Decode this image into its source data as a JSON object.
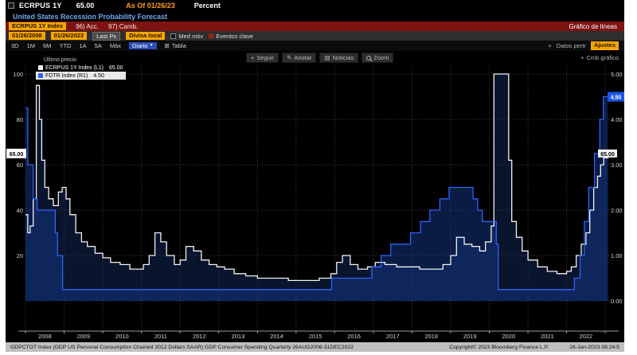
{
  "topbar": {
    "ticker": "ECRPUS 1Y",
    "value": "65.00",
    "as_of": "As Of 01/26/23",
    "unit": "Percent",
    "title": "United States Recession Probability Forecast"
  },
  "cmdbar": {
    "security": "ECRPUS 1Y Index",
    "actions": "96) Acc.",
    "edit": "97) Camb.",
    "chart_type": "Gráfico de líneas"
  },
  "settings": {
    "date_from": "01/26/2008",
    "date_to": "01/26/2023",
    "price_type": "Last Px",
    "currency": "Divisa local",
    "mov_avg_label": "Med móv",
    "key_events_label": "Eventos clave"
  },
  "tabsbar": {
    "periods": [
      "3D",
      "1M",
      "6M",
      "YTD",
      "1A",
      "5A",
      "Máx"
    ],
    "frequency": "Diario",
    "table_label": "Tabla",
    "related_data_label": "Datos pertr",
    "template_label": "Ajustes"
  },
  "chart_toolbar": {
    "track": "Seguir",
    "annotate": "Anotar",
    "news": "Noticias",
    "zoom": "Zoom",
    "edit_chart": "Cmb gráfico."
  },
  "legend": {
    "title": "Último precio",
    "series": [
      {
        "label": "ECRPUS 1Y Index (L1)",
        "value": "65.00"
      },
      {
        "label": "FDTR Index  (R1)",
        "value": "4.50"
      }
    ]
  },
  "icons": {
    "caret": "▼",
    "plus": "+",
    "annotate": "✎",
    "news": "▤",
    "table": "⊞"
  },
  "chart_data": {
    "type": "line",
    "x_range": [
      2008.0,
      2023.1
    ],
    "x_ticks": [
      "2008",
      "2009",
      "2010",
      "2011",
      "2012",
      "2013",
      "2014",
      "2015",
      "2016",
      "2017",
      "2018",
      "2019",
      "2020",
      "2021",
      "2022"
    ],
    "left_axis": {
      "label": "ECRPUS 1Y Index",
      "ticks": [
        20,
        40,
        60,
        80,
        100
      ],
      "range": [
        0,
        105
      ],
      "current": 65,
      "current_label": "65.00"
    },
    "right_axis": {
      "label": "FDTR Index",
      "ticks": [
        0,
        1,
        2,
        3,
        4,
        5
      ],
      "range": [
        0,
        5.25
      ],
      "current": 4.5,
      "current_label": "4.50",
      "badge_color": "#1e56e8"
    },
    "grid": true,
    "legend_position": "top-left",
    "series": [
      {
        "id": "ecrpus",
        "name": "ECRPUS 1Y Index",
        "axis": "left",
        "color": "#f2f2f2",
        "fill": "rgba(20,45,100,0.45)",
        "points": [
          [
            2008.0,
            38
          ],
          [
            2008.06,
            30
          ],
          [
            2008.12,
            33
          ],
          [
            2008.2,
            45
          ],
          [
            2008.28,
            95
          ],
          [
            2008.36,
            80
          ],
          [
            2008.42,
            62
          ],
          [
            2008.5,
            50
          ],
          [
            2008.6,
            45
          ],
          [
            2008.72,
            42
          ],
          [
            2008.85,
            48
          ],
          [
            2008.95,
            50
          ],
          [
            2009.05,
            45
          ],
          [
            2009.15,
            38
          ],
          [
            2009.3,
            30
          ],
          [
            2009.45,
            26
          ],
          [
            2009.6,
            24
          ],
          [
            2009.8,
            21
          ],
          [
            2010.0,
            19
          ],
          [
            2010.2,
            17
          ],
          [
            2010.45,
            16
          ],
          [
            2010.7,
            14
          ],
          [
            2010.9,
            14
          ],
          [
            2011.05,
            16
          ],
          [
            2011.2,
            20
          ],
          [
            2011.35,
            30
          ],
          [
            2011.5,
            26
          ],
          [
            2011.65,
            20
          ],
          [
            2011.85,
            16
          ],
          [
            2012.0,
            18
          ],
          [
            2012.15,
            24
          ],
          [
            2012.35,
            22
          ],
          [
            2012.55,
            18
          ],
          [
            2012.75,
            16
          ],
          [
            2012.95,
            15
          ],
          [
            2013.15,
            14
          ],
          [
            2013.4,
            12
          ],
          [
            2013.7,
            11
          ],
          [
            2014.0,
            10
          ],
          [
            2014.4,
            10
          ],
          [
            2014.8,
            9
          ],
          [
            2015.2,
            9
          ],
          [
            2015.6,
            10
          ],
          [
            2015.9,
            12
          ],
          [
            2016.05,
            17
          ],
          [
            2016.2,
            20
          ],
          [
            2016.4,
            16
          ],
          [
            2016.6,
            14
          ],
          [
            2016.85,
            15
          ],
          [
            2017.05,
            17
          ],
          [
            2017.3,
            16
          ],
          [
            2017.6,
            15
          ],
          [
            2017.9,
            15
          ],
          [
            2018.2,
            14
          ],
          [
            2018.5,
            14
          ],
          [
            2018.8,
            16
          ],
          [
            2019.0,
            20
          ],
          [
            2019.15,
            28
          ],
          [
            2019.35,
            25
          ],
          [
            2019.55,
            24
          ],
          [
            2019.75,
            22
          ],
          [
            2019.9,
            26
          ],
          [
            2020.05,
            33
          ],
          [
            2020.12,
            100
          ],
          [
            2020.4,
            100
          ],
          [
            2020.5,
            62
          ],
          [
            2020.58,
            35
          ],
          [
            2020.7,
            28
          ],
          [
            2020.85,
            22
          ],
          [
            2021.0,
            18
          ],
          [
            2021.25,
            15
          ],
          [
            2021.5,
            13
          ],
          [
            2021.75,
            12
          ],
          [
            2022.0,
            13
          ],
          [
            2022.12,
            15
          ],
          [
            2022.25,
            20
          ],
          [
            2022.38,
            25
          ],
          [
            2022.5,
            30
          ],
          [
            2022.6,
            40
          ],
          [
            2022.7,
            50
          ],
          [
            2022.8,
            55
          ],
          [
            2022.88,
            60
          ],
          [
            2022.96,
            63
          ],
          [
            2023.07,
            65
          ]
        ]
      },
      {
        "id": "fdtr",
        "name": "FDTR Index",
        "axis": "right",
        "color": "#2e63f7",
        "fill": "rgba(22,60,150,0.45)",
        "points": [
          [
            2008.0,
            4.25
          ],
          [
            2008.06,
            3.0
          ],
          [
            2008.2,
            2.25
          ],
          [
            2008.3,
            2.0
          ],
          [
            2008.77,
            1.5
          ],
          [
            2008.83,
            1.0
          ],
          [
            2008.96,
            0.25
          ],
          [
            2015.92,
            0.5
          ],
          [
            2016.96,
            0.75
          ],
          [
            2017.2,
            1.0
          ],
          [
            2017.45,
            1.25
          ],
          [
            2017.96,
            1.5
          ],
          [
            2018.22,
            1.75
          ],
          [
            2018.46,
            2.0
          ],
          [
            2018.72,
            2.25
          ],
          [
            2018.96,
            2.5
          ],
          [
            2019.58,
            2.25
          ],
          [
            2019.7,
            2.0
          ],
          [
            2019.82,
            1.75
          ],
          [
            2020.18,
            1.25
          ],
          [
            2020.23,
            0.25
          ],
          [
            2022.2,
            0.5
          ],
          [
            2022.35,
            1.0
          ],
          [
            2022.46,
            1.75
          ],
          [
            2022.57,
            2.5
          ],
          [
            2022.72,
            3.25
          ],
          [
            2022.86,
            4.0
          ],
          [
            2022.95,
            4.5
          ],
          [
            2023.07,
            4.5
          ]
        ]
      }
    ]
  },
  "statusbar": {
    "description": "GDPCTOT Index (GDP US Personal Consumption Chained 2012 Dollars SAAR) GDP Consumer Spending Quarterly 26AUG2006-31DEC2022",
    "copyright": "Copyright© 2023 Bloomberg Finance L.P.",
    "datetime": "26-Jan-2023 08:24:5"
  }
}
